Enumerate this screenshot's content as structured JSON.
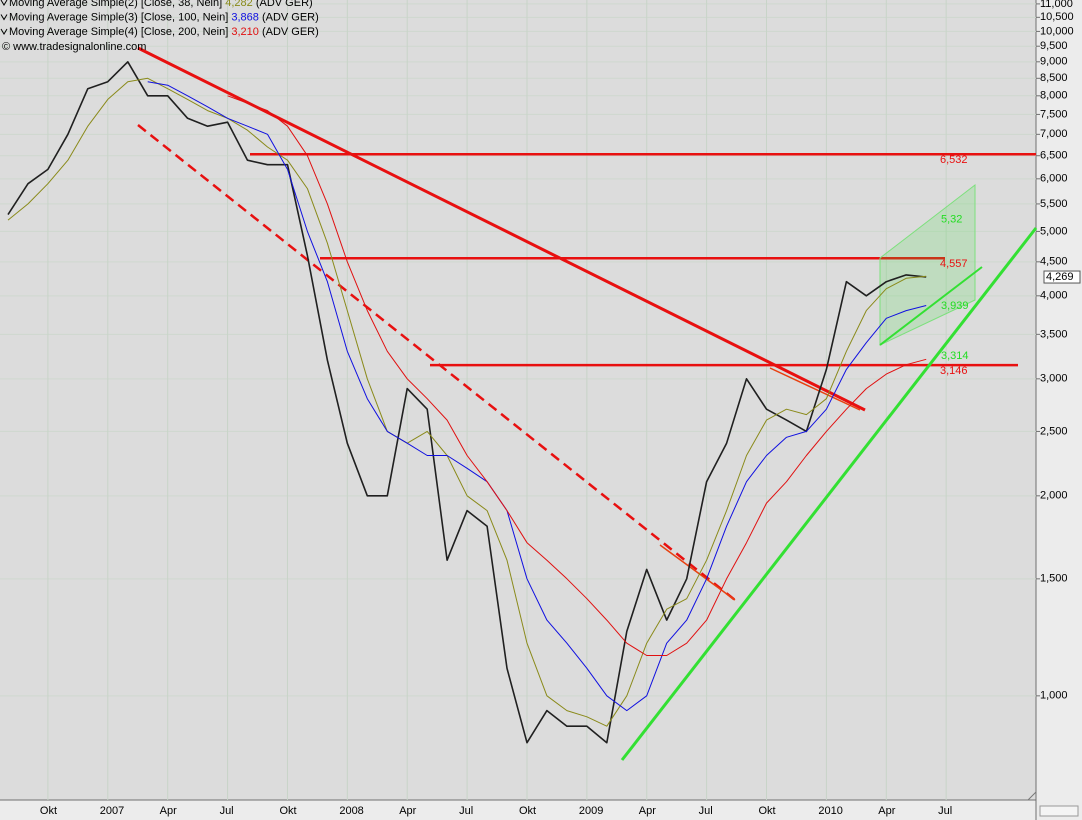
{
  "chart_data": {
    "type": "line",
    "log_scale": true,
    "grid": true,
    "source": "© www.tradesignalonline.com",
    "legend_suffix": "(ADV GER)",
    "last_price": {
      "value": 4269,
      "label": "4,269"
    },
    "ylim": [
      697,
      11150
    ],
    "yticks": [
      {
        "value": 1000,
        "label": "1,000"
      },
      {
        "value": 1500,
        "label": "1,500"
      },
      {
        "value": 2000,
        "label": "2,000"
      },
      {
        "value": 2500,
        "label": "2,500"
      },
      {
        "value": 3000,
        "label": "3,000"
      },
      {
        "value": 3500,
        "label": "3,500"
      },
      {
        "value": 4000,
        "label": "4,000"
      },
      {
        "value": 4500,
        "label": "4,500"
      },
      {
        "value": 5000,
        "label": "5,000"
      },
      {
        "value": 5500,
        "label": "5,500"
      },
      {
        "value": 6000,
        "label": "6,000"
      },
      {
        "value": 6500,
        "label": "6,500"
      },
      {
        "value": 7000,
        "label": "7,000"
      },
      {
        "value": 7500,
        "label": "7,500"
      },
      {
        "value": 8000,
        "label": "8,000"
      },
      {
        "value": 8500,
        "label": "8,500"
      },
      {
        "value": 9000,
        "label": "9,000"
      },
      {
        "value": 9500,
        "label": "9,500"
      },
      {
        "value": 10000,
        "label": "10,000"
      },
      {
        "value": 10500,
        "label": "10,500"
      },
      {
        "value": 11000,
        "label": "11,000"
      }
    ],
    "categories": [
      null,
      null,
      "Okt",
      null,
      null,
      "2007",
      null,
      null,
      "Apr",
      null,
      null,
      "Jul",
      null,
      null,
      "Okt",
      null,
      null,
      "2008",
      null,
      null,
      "Apr",
      null,
      null,
      "Jul",
      null,
      null,
      "Okt",
      null,
      null,
      "2009",
      null,
      null,
      "Apr",
      null,
      null,
      "Jul",
      null,
      null,
      "Okt",
      null,
      null,
      "2010",
      null,
      null,
      "Apr",
      null,
      null,
      "Jul",
      null,
      null,
      null,
      null
    ],
    "series": [
      {
        "color": "#202020",
        "width": 1.6,
        "values": [
          5300,
          5900,
          6200,
          7000,
          8200,
          8400,
          9000,
          8000,
          8000,
          7400,
          7200,
          7300,
          6400,
          6300,
          6300,
          4600,
          3200,
          2400,
          2000,
          2000,
          2900,
          2700,
          1600,
          1900,
          1800,
          1100,
          850,
          950,
          900,
          900,
          850,
          1250,
          1550,
          1300,
          1500,
          2100,
          2400,
          3000,
          2700,
          2600,
          2500,
          3100,
          4200,
          4000,
          4200,
          4300,
          4269,
          null,
          null,
          null,
          null,
          null
        ]
      },
      {
        "name": "Moving Average Simple(2) [Close, 38, Nein]",
        "color": "#8a8a1a",
        "width": 1,
        "legend_value": {
          "value": 4282,
          "label": "4,282"
        },
        "values": [
          5200,
          5500,
          5900,
          6400,
          7200,
          7900,
          8400,
          8500,
          8200,
          7900,
          7600,
          7400,
          7100,
          6700,
          6400,
          5800,
          4800,
          3800,
          3000,
          2500,
          2400,
          2500,
          2300,
          2000,
          1900,
          1600,
          1200,
          1000,
          950,
          930,
          900,
          1000,
          1200,
          1350,
          1400,
          1600,
          1900,
          2300,
          2600,
          2700,
          2650,
          2800,
          3300,
          3800,
          4100,
          4250,
          4282,
          null,
          null,
          null,
          null,
          null
        ]
      },
      {
        "name": "Moving Average Simple(3) [Close, 100, Nein]",
        "color": "#1010e0",
        "width": 1,
        "legend_value": {
          "value": 3868,
          "label": "3,868"
        },
        "values": [
          null,
          null,
          null,
          null,
          null,
          null,
          null,
          8400,
          8300,
          8000,
          7700,
          7400,
          7200,
          7000,
          6200,
          5000,
          4200,
          3300,
          2800,
          2500,
          2400,
          2300,
          2300,
          2200,
          2100,
          1900,
          1500,
          1300,
          1200,
          1100,
          1000,
          950,
          1000,
          1200,
          1300,
          1500,
          1800,
          2100,
          2300,
          2450,
          2500,
          2700,
          3100,
          3400,
          3700,
          3800,
          3868,
          null,
          null,
          null,
          null,
          null
        ]
      },
      {
        "name": "Moving Average Simple(4) [Close, 200, Nein]",
        "color": "#e01010",
        "width": 1,
        "legend_value": {
          "value": 3210,
          "label": "3,210"
        },
        "values": [
          null,
          null,
          null,
          null,
          null,
          null,
          null,
          null,
          null,
          null,
          null,
          8000,
          7800,
          7600,
          7200,
          6500,
          5500,
          4500,
          3800,
          3300,
          3000,
          2800,
          2600,
          2300,
          2100,
          1900,
          1700,
          1600,
          1500,
          1400,
          1300,
          1200,
          1150,
          1150,
          1200,
          1300,
          1500,
          1700,
          1950,
          2100,
          2300,
          2500,
          2700,
          2900,
          3050,
          3150,
          3210,
          null,
          null,
          null,
          null,
          null
        ]
      }
    ],
    "levels": [
      {
        "value": 6532,
        "label": "6,532",
        "color": "#e81010"
      },
      {
        "value": 4557,
        "label": "4,557",
        "color": "#e81010"
      },
      {
        "value": 3146,
        "label": "3,146",
        "color": "#e81010"
      }
    ],
    "annotations": [
      {
        "value": 5320,
        "label": "5,32",
        "color": "#22dd22"
      },
      {
        "value": 3939,
        "label": "3,939",
        "color": "#22dd22"
      },
      {
        "value": 3314,
        "label": "3,314",
        "color": "#22dd22"
      }
    ]
  }
}
